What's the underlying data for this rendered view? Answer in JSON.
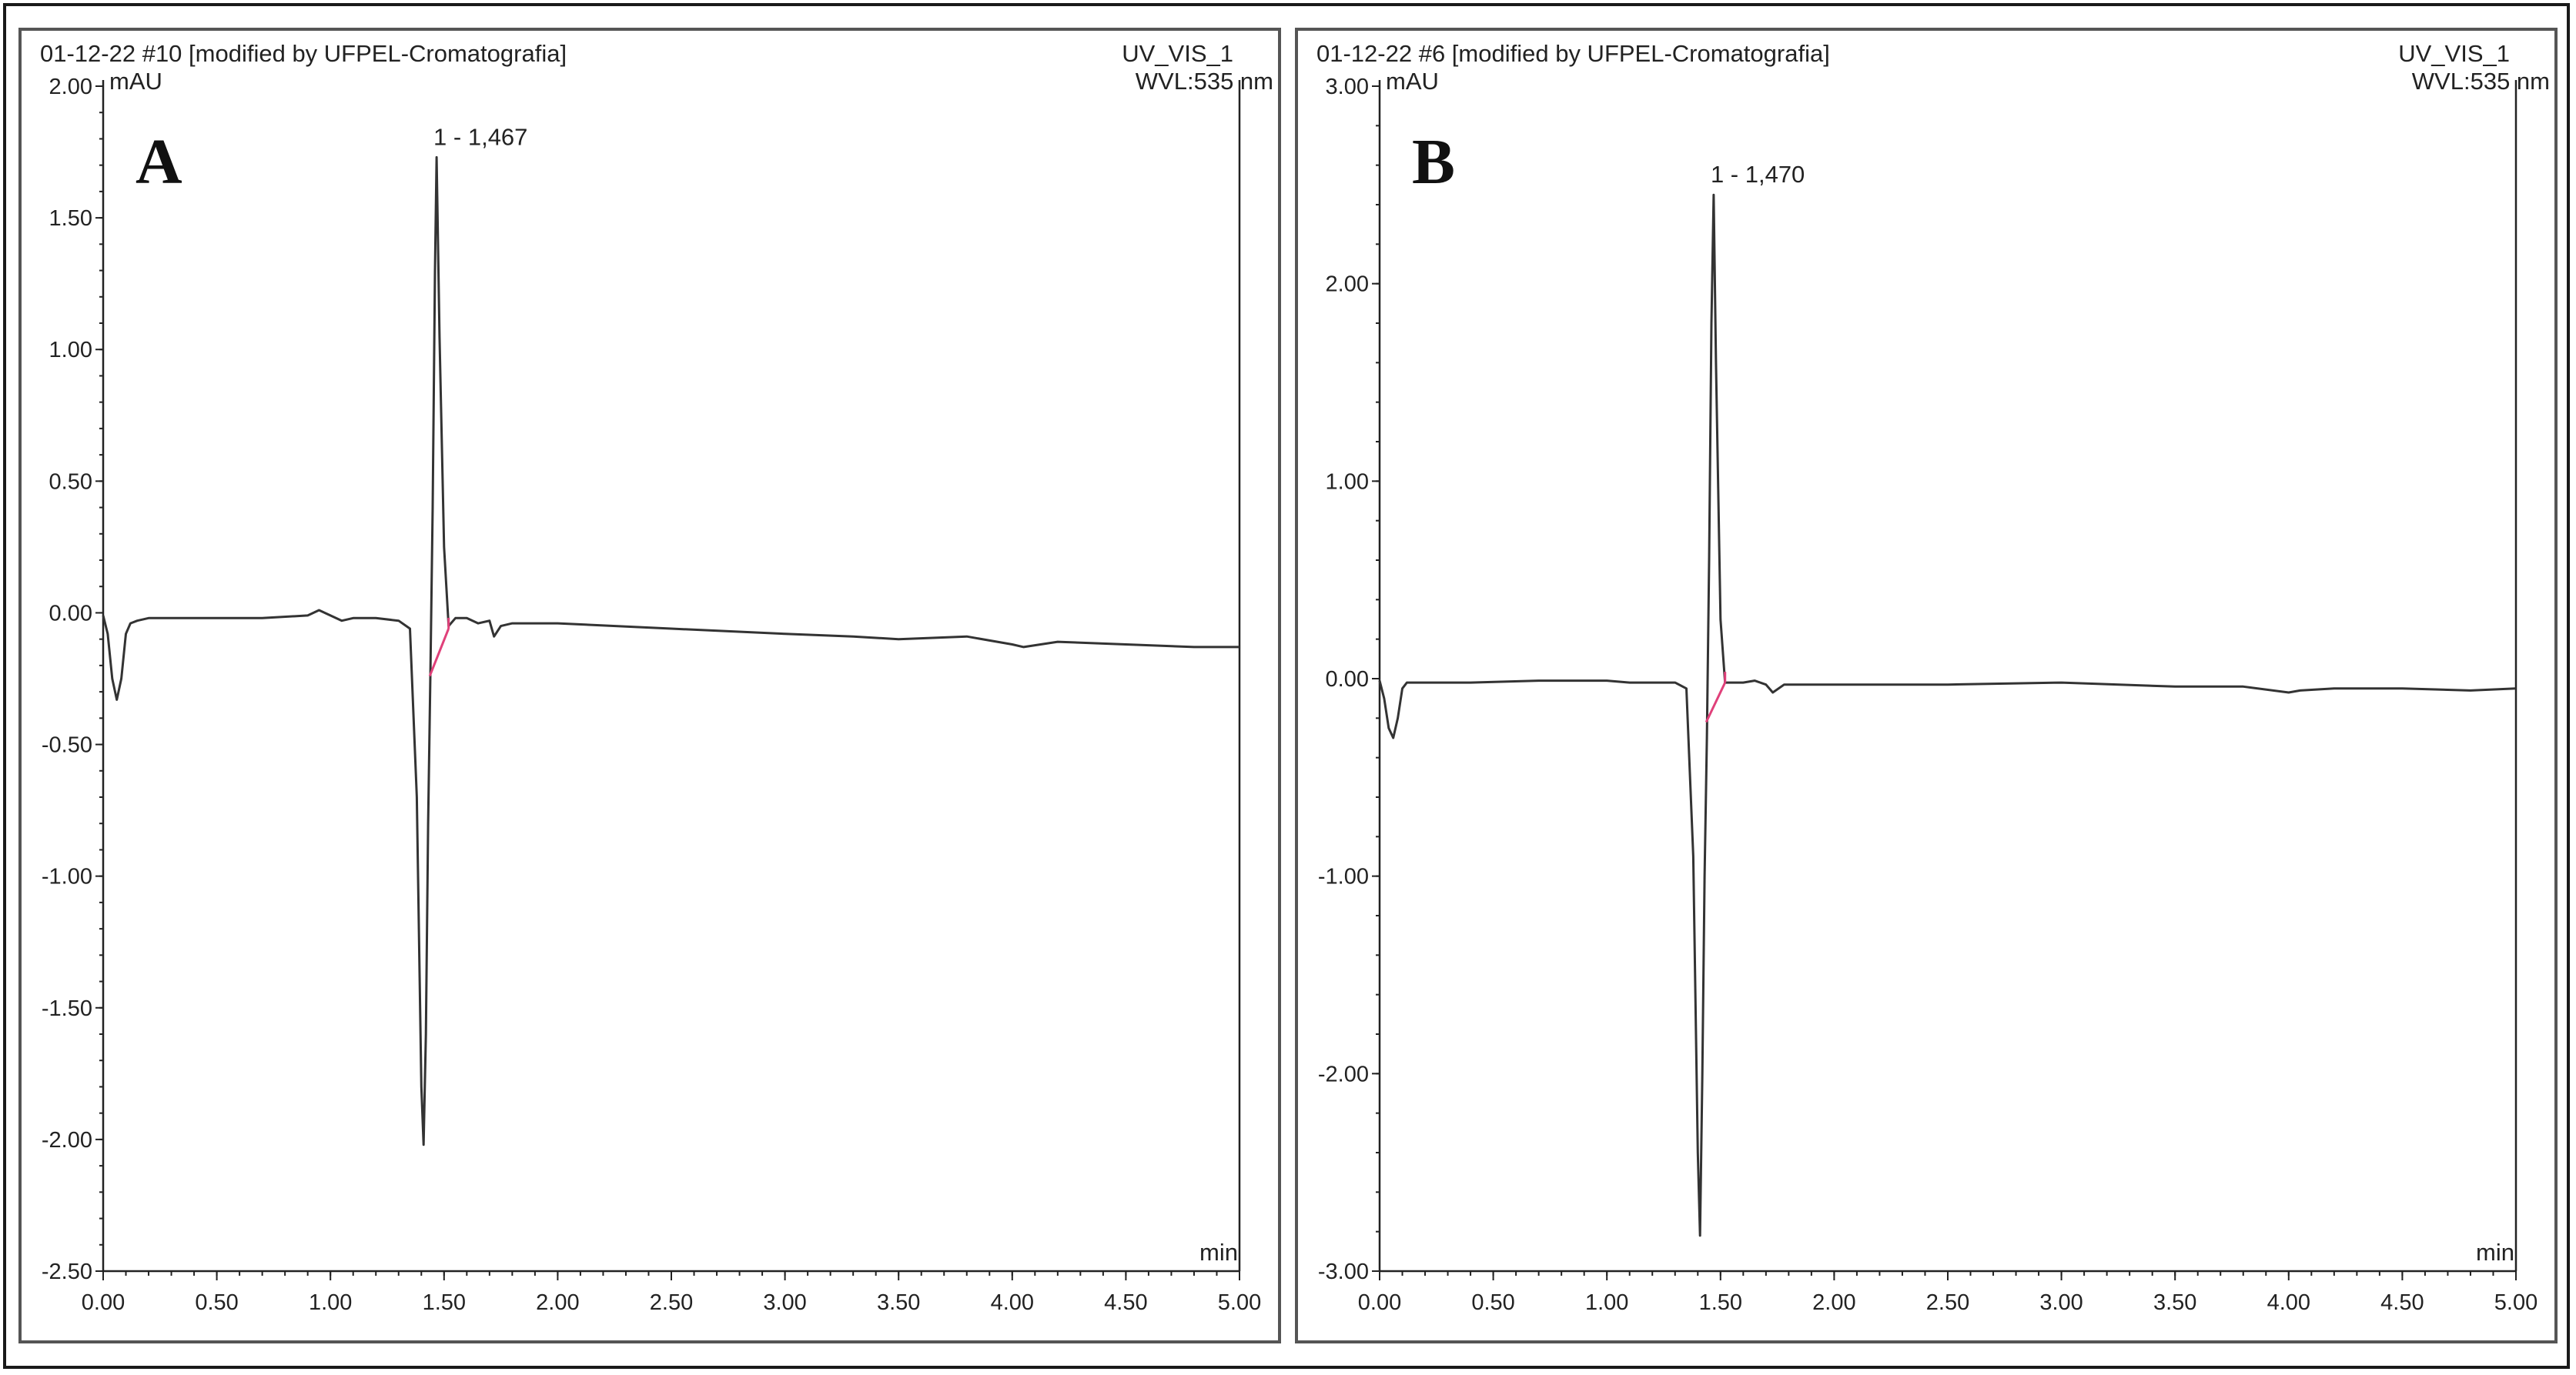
{
  "colors": {
    "trace": "#333333",
    "peak_baseline": "#e0407a",
    "axis": "#222222",
    "frame": "#1a1a1a"
  },
  "chart_data": [
    {
      "type": "line",
      "panel_label": "A",
      "header_left": "01-12-22 #10 [modified by UFPEL-Cromatografia]",
      "header_right": "UV_VIS_1",
      "wavelength": "WVL:535 nm",
      "ylabel": "mAU",
      "xlabel": "min",
      "xlim": [
        0,
        5
      ],
      "ylim": [
        -2.5,
        2.0
      ],
      "x_ticks": [
        "0.00",
        "0.50",
        "1.00",
        "1.50",
        "2.00",
        "2.50",
        "3.00",
        "3.50",
        "4.00",
        "4.50",
        "5.00"
      ],
      "y_ticks": [
        "2.00",
        "1.50",
        "1.00",
        "0.50",
        "0.00",
        "-0.50",
        "-1.00",
        "-1.50",
        "-2.00",
        "-2.50"
      ],
      "grid": false,
      "peak": {
        "label": "1 - 1,467",
        "x": 1.467,
        "y": 1.73
      },
      "series": [
        {
          "x": [
            0.0,
            0.02,
            0.04,
            0.06,
            0.08,
            0.1,
            0.12,
            0.15,
            0.2,
            0.3,
            0.5,
            0.7,
            0.9,
            0.95,
            1.0,
            1.05,
            1.1,
            1.2,
            1.3,
            1.35,
            1.38,
            1.4,
            1.41,
            1.42,
            1.43,
            1.44,
            1.45,
            1.46,
            1.467,
            1.48,
            1.5,
            1.52,
            1.55,
            1.6,
            1.65,
            1.7,
            1.72,
            1.75,
            1.8,
            2.0,
            2.5,
            3.0,
            3.3,
            3.5,
            3.8,
            4.0,
            4.05,
            4.2,
            4.5,
            4.8,
            5.0
          ],
          "y": [
            -0.01,
            -0.08,
            -0.25,
            -0.33,
            -0.25,
            -0.08,
            -0.04,
            -0.03,
            -0.02,
            -0.02,
            -0.02,
            -0.02,
            -0.01,
            0.01,
            -0.01,
            -0.03,
            -0.02,
            -0.02,
            -0.03,
            -0.06,
            -0.7,
            -1.8,
            -2.02,
            -1.6,
            -0.8,
            -0.22,
            0.4,
            1.3,
            1.73,
            1.05,
            0.25,
            -0.05,
            -0.02,
            -0.02,
            -0.04,
            -0.03,
            -0.09,
            -0.05,
            -0.04,
            -0.04,
            -0.06,
            -0.08,
            -0.09,
            -0.1,
            -0.09,
            -0.12,
            -0.13,
            -0.11,
            -0.12,
            -0.13,
            -0.13
          ]
        }
      ],
      "peak_baseline": {
        "x": [
          1.437,
          1.52
        ],
        "y": [
          -0.24,
          -0.06
        ]
      }
    },
    {
      "type": "line",
      "panel_label": "B",
      "header_left": "01-12-22 #6 [modified by UFPEL-Cromatografia]",
      "header_right": "UV_VIS_1",
      "wavelength": "WVL:535 nm",
      "ylabel": "mAU",
      "xlabel": "min",
      "xlim": [
        0,
        5
      ],
      "ylim": [
        -3.0,
        3.0
      ],
      "x_ticks": [
        "0.00",
        "0.50",
        "1.00",
        "1.50",
        "2.00",
        "2.50",
        "3.00",
        "3.50",
        "4.00",
        "4.50",
        "5.00"
      ],
      "y_ticks": [
        "3.00",
        "2.00",
        "1.00",
        "0.00",
        "-1.00",
        "-2.00",
        "-3.00"
      ],
      "grid": false,
      "peak": {
        "label": "1 - 1,470",
        "x": 1.47,
        "y": 2.45
      },
      "series": [
        {
          "x": [
            0.0,
            0.02,
            0.04,
            0.06,
            0.08,
            0.1,
            0.12,
            0.15,
            0.2,
            0.4,
            0.7,
            0.9,
            1.0,
            1.1,
            1.2,
            1.3,
            1.35,
            1.38,
            1.4,
            1.41,
            1.42,
            1.43,
            1.44,
            1.45,
            1.46,
            1.47,
            1.48,
            1.5,
            1.52,
            1.55,
            1.6,
            1.65,
            1.7,
            1.73,
            1.78,
            2.0,
            2.5,
            3.0,
            3.5,
            3.8,
            4.0,
            4.05,
            4.2,
            4.5,
            4.8,
            5.0
          ],
          "y": [
            -0.01,
            -0.1,
            -0.25,
            -0.3,
            -0.2,
            -0.05,
            -0.02,
            -0.02,
            -0.02,
            -0.02,
            -0.01,
            -0.01,
            -0.01,
            -0.02,
            -0.02,
            -0.02,
            -0.05,
            -0.9,
            -2.4,
            -2.82,
            -2.0,
            -1.0,
            -0.3,
            0.6,
            1.8,
            2.45,
            1.6,
            0.3,
            -0.02,
            -0.02,
            -0.02,
            -0.01,
            -0.03,
            -0.07,
            -0.03,
            -0.03,
            -0.03,
            -0.02,
            -0.04,
            -0.04,
            -0.07,
            -0.06,
            -0.05,
            -0.05,
            -0.06,
            -0.05
          ]
        }
      ],
      "peak_baseline": {
        "x": [
          1.437,
          1.52
        ],
        "y": [
          -0.22,
          -0.02
        ]
      }
    }
  ]
}
